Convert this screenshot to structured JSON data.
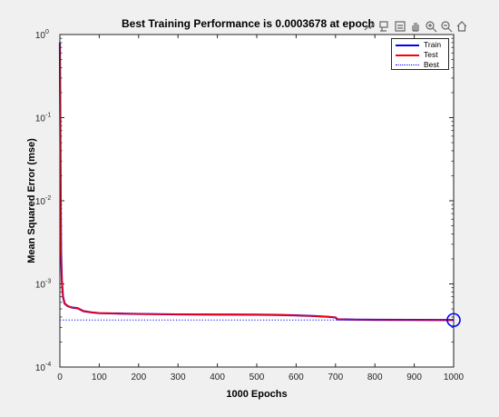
{
  "toolbar": {
    "icons": [
      "export-icon",
      "data-tips-icon",
      "brush-icon",
      "pan-icon",
      "zoom-in-icon",
      "zoom-out-icon",
      "home-icon"
    ]
  },
  "colors": {
    "train": "#0000ff",
    "test": "#ff0000",
    "best": "#0000ff",
    "axes": "#262626"
  },
  "chart_data": {
    "type": "line",
    "title": "Best Training Performance is 0.0003678 at epoch",
    "xlabel": "1000 Epochs",
    "ylabel": "Mean Squared Error  (mse)",
    "xlim": [
      0,
      1000
    ],
    "ylim": [
      0.0001,
      1
    ],
    "yscale": "log",
    "grid": false,
    "legend_position": "top-right",
    "x_ticks": [
      "0",
      "100",
      "200",
      "300",
      "400",
      "500",
      "600",
      "700",
      "800",
      "900",
      "1000"
    ],
    "y_ticks": [
      {
        "base": "10",
        "exp": "0"
      },
      {
        "base": "10",
        "exp": "-1"
      },
      {
        "base": "10",
        "exp": "-2"
      },
      {
        "base": "10",
        "exp": "-3"
      },
      {
        "base": "10",
        "exp": "-4"
      }
    ],
    "series": [
      {
        "name": "Train",
        "style": "solid",
        "x": [
          0,
          1,
          2,
          3,
          5,
          8,
          12,
          20,
          30,
          45,
          60,
          80,
          100,
          150,
          200,
          300,
          400,
          500,
          550,
          600,
          650,
          680,
          700,
          705,
          750,
          800,
          900,
          1000
        ],
        "y": [
          0.8,
          0.1,
          0.012,
          0.0025,
          0.0011,
          0.0007,
          0.00058,
          0.00054,
          0.00052,
          0.00051,
          0.00047,
          0.000455,
          0.000445,
          0.00044,
          0.000435,
          0.00043,
          0.000428,
          0.000426,
          0.000424,
          0.000418,
          0.00041,
          0.000402,
          0.000395,
          0.000375,
          0.000372,
          0.00037,
          0.000369,
          0.0003678
        ]
      },
      {
        "name": "Test",
        "style": "solid",
        "x": [
          0,
          1,
          2,
          3,
          5,
          8,
          12,
          20,
          30,
          45,
          60,
          80,
          100,
          150,
          200,
          300,
          400,
          500,
          550,
          600,
          650,
          680,
          700,
          705,
          750,
          800,
          900,
          1000
        ],
        "y": [
          0.8,
          0.1,
          0.012,
          0.0025,
          0.0011,
          0.0007,
          0.00058,
          0.00054,
          0.00052,
          0.00051,
          0.00047,
          0.000455,
          0.000445,
          0.00044,
          0.000435,
          0.00043,
          0.000428,
          0.000426,
          0.000424,
          0.000418,
          0.00041,
          0.000402,
          0.000395,
          0.000375,
          0.000372,
          0.00037,
          0.000369,
          0.0003678
        ]
      },
      {
        "name": "Best",
        "style": "dotted",
        "x": [
          0,
          1000
        ],
        "y": [
          0.0003678,
          0.0003678
        ],
        "vertical_at_x": 1000
      }
    ],
    "best_point": {
      "x": 1000,
      "y": 0.0003678
    }
  }
}
